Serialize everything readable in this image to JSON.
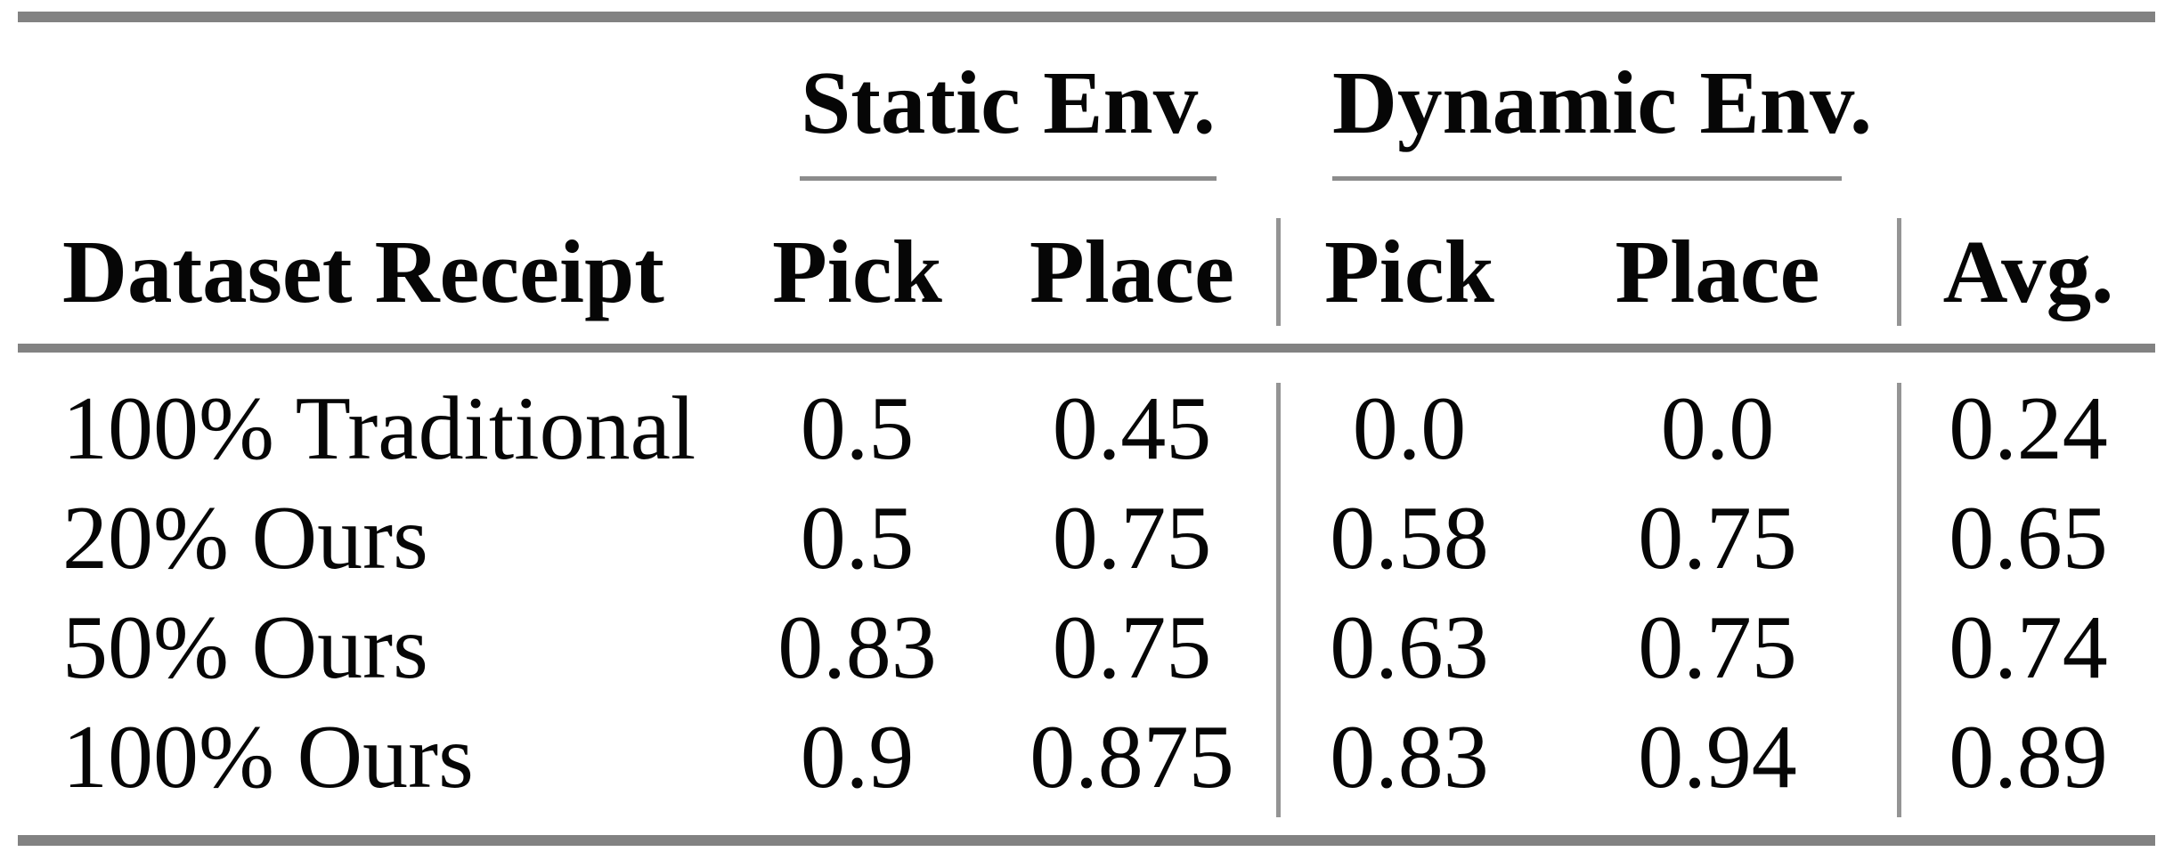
{
  "colors": {
    "rule_strong": "#828282",
    "rule_mid": "#8c8c8c",
    "rule_light": "#949494",
    "text": "#060606",
    "bg": "#ffffff"
  },
  "table": {
    "group_headers": {
      "static": "Static Env.",
      "dynamic": "Dynamic Env."
    },
    "column_headers": {
      "dataset": "Dataset Receipt",
      "static_pick": "Pick",
      "static_place": "Place",
      "dynamic_pick": "Pick",
      "dynamic_place": "Place",
      "avg": "Avg."
    },
    "rows": [
      {
        "label": "100% Traditional",
        "values": [
          "0.5",
          "0.45",
          "0.0",
          "0.0",
          "0.24"
        ]
      },
      {
        "label": "20% Ours",
        "values": [
          "0.5",
          "0.75",
          "0.58",
          "0.75",
          "0.65"
        ]
      },
      {
        "label": "50% Ours",
        "values": [
          "0.83",
          "0.75",
          "0.63",
          "0.75",
          "0.74"
        ]
      },
      {
        "label": "100% Ours",
        "values": [
          "0.9",
          "0.875",
          "0.83",
          "0.94",
          "0.89"
        ]
      }
    ]
  }
}
